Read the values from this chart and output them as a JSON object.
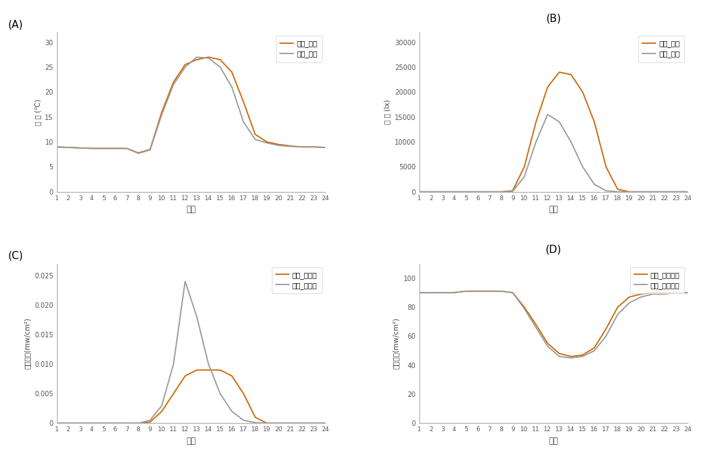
{
  "hours": [
    1,
    2,
    3,
    4,
    5,
    6,
    7,
    8,
    9,
    10,
    11,
    12,
    13,
    14,
    15,
    16,
    17,
    18,
    19,
    20,
    21,
    22,
    23,
    24
  ],
  "A": {
    "dongso": [
      9.0,
      8.9,
      8.8,
      8.7,
      8.7,
      8.7,
      8.7,
      7.8,
      8.5,
      16.0,
      22.0,
      25.5,
      26.5,
      27.0,
      26.5,
      24.0,
      18.0,
      11.5,
      10.0,
      9.5,
      9.2,
      9.0,
      9.0,
      8.9
    ],
    "nambuk": [
      9.0,
      8.9,
      8.8,
      8.7,
      8.7,
      8.7,
      8.7,
      7.7,
      8.4,
      15.5,
      21.5,
      25.0,
      27.0,
      26.8,
      25.0,
      21.0,
      14.0,
      10.5,
      9.8,
      9.3,
      9.1,
      9.0,
      9.0,
      8.9
    ],
    "ylabel": "온 도 (℃)",
    "ylim": [
      0,
      32
    ],
    "yticks": [
      0,
      5,
      10,
      15,
      20,
      25,
      30
    ],
    "ytick_labels": [
      "0",
      "5",
      "10",
      "15",
      "20",
      "25",
      "30"
    ],
    "legend1": "동서_온도",
    "legend2": "남북_온도"
  },
  "B": {
    "dongso": [
      0,
      0,
      0,
      0,
      0,
      0,
      0,
      0,
      200,
      5000,
      14000,
      21000,
      24000,
      23500,
      20000,
      14000,
      5000,
      500,
      0,
      0,
      0,
      0,
      0,
      0
    ],
    "nambuk": [
      0,
      0,
      0,
      0,
      0,
      0,
      0,
      0,
      100,
      3000,
      10000,
      15500,
      14000,
      10000,
      5000,
      1500,
      200,
      0,
      0,
      0,
      0,
      0,
      0,
      0
    ],
    "ylabel": "조 도 (lx)",
    "ylim": [
      0,
      32000
    ],
    "yticks": [
      0,
      5000,
      10000,
      15000,
      20000,
      25000,
      30000
    ],
    "ytick_labels": [
      "0",
      "5000",
      "10000",
      "15000",
      "20000",
      "25000",
      "30000"
    ],
    "legend1": "동서_조도",
    "legend2": "남북_조도"
  },
  "C": {
    "dongso": [
      0,
      0,
      0,
      0,
      0,
      0,
      0,
      0,
      0.0002,
      0.002,
      0.005,
      0.008,
      0.009,
      0.009,
      0.009,
      0.008,
      0.005,
      0.001,
      0,
      0,
      0,
      0,
      0,
      0
    ],
    "nambuk": [
      0,
      0,
      0,
      0,
      0,
      0,
      0,
      0,
      0.0005,
      0.003,
      0.01,
      0.024,
      0.018,
      0.01,
      0.005,
      0.002,
      0.0005,
      0.0001,
      0,
      0,
      0,
      0,
      0,
      0
    ],
    "ylabel": "자외선량(mw/cm²)",
    "ylim": [
      0,
      0.027
    ],
    "yticks": [
      0,
      0.005,
      0.01,
      0.015,
      0.02,
      0.025
    ],
    "ytick_labels": [
      "0",
      "0.005",
      "0.010",
      "0.015",
      "0.020",
      "0.025"
    ],
    "legend1": "동서_자외선",
    "legend2": "남북_자외선"
  },
  "D": {
    "dongso": [
      90,
      90,
      90,
      90,
      91,
      91,
      91,
      91,
      90,
      80,
      68,
      55,
      48,
      46,
      47,
      52,
      65,
      80,
      87,
      89,
      90,
      90,
      90,
      90
    ],
    "nambuk": [
      90,
      90,
      90,
      90,
      91,
      91,
      91,
      91,
      90,
      79,
      66,
      53,
      46,
      45,
      46,
      50,
      60,
      75,
      83,
      87,
      89,
      89,
      90,
      90
    ],
    "ylabel": "저위선량(mw/cm²)",
    "ylim": [
      0,
      110
    ],
    "yticks": [
      0,
      20,
      40,
      60,
      80,
      100
    ],
    "ytick_labels": [
      "0",
      "20",
      "40",
      "60",
      "80",
      "100"
    ],
    "legend1": "동서_상대습도",
    "legend2": "남북_상대습도"
  },
  "xlabel": "시각",
  "color_dongso": "#cc6600",
  "color_nambuk": "#999999",
  "panel_labels": [
    "(A)",
    "(B)",
    "(C)",
    "(D)"
  ]
}
